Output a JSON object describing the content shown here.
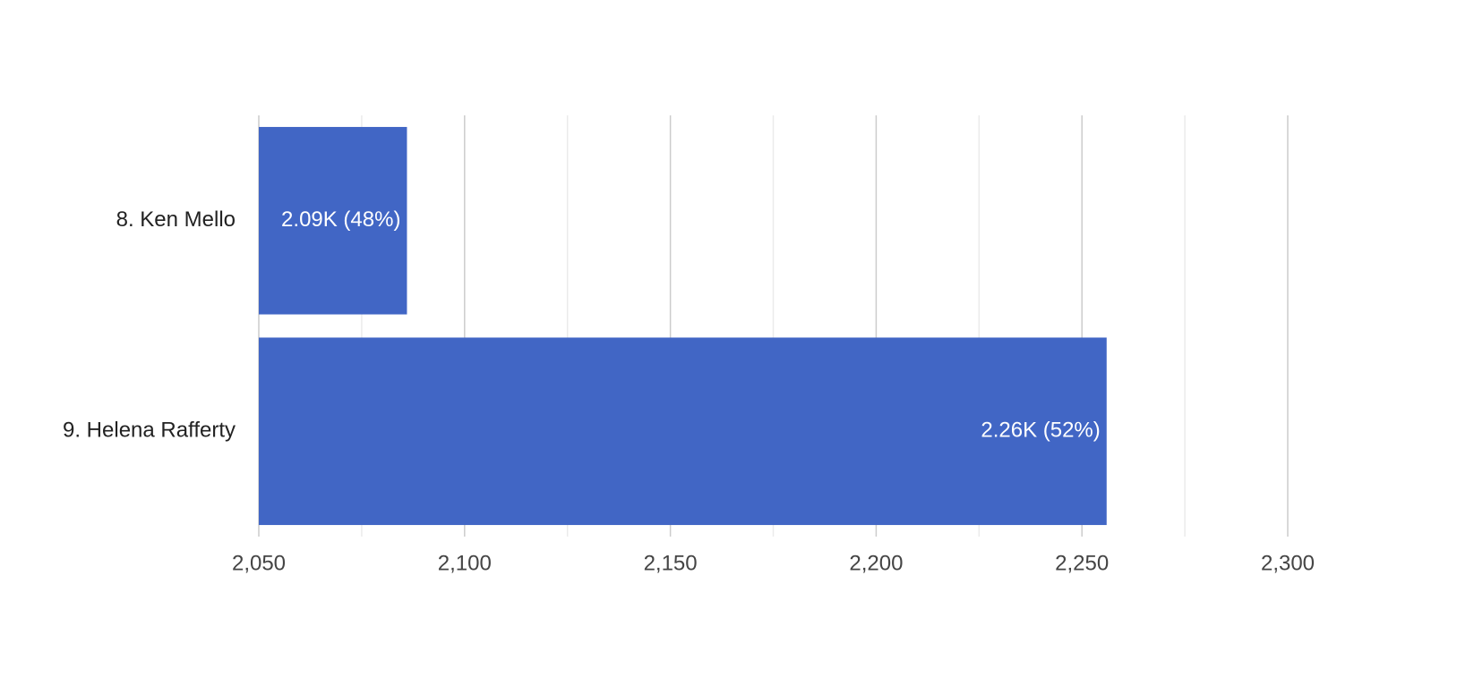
{
  "chart_data": {
    "type": "hbar",
    "categories": [
      "8. Ken Mello",
      "9. Helena Rafferty"
    ],
    "values": [
      2086,
      2256
    ],
    "value_labels": [
      "2.09K (48%)",
      "2.26K (52%)"
    ],
    "color": "#4166c5",
    "xlim": [
      2050,
      2300
    ],
    "xticks": [
      {
        "value": 2050,
        "label": "2,050"
      },
      {
        "value": 2100,
        "label": "2,100"
      },
      {
        "value": 2150,
        "label": "2,150"
      },
      {
        "value": 2200,
        "label": "2,200"
      },
      {
        "value": 2250,
        "label": "2,250"
      },
      {
        "value": 2300,
        "label": "2,300"
      }
    ],
    "minor_xticks": [
      2075,
      2125,
      2175,
      2225,
      2275
    ],
    "grid": true
  }
}
